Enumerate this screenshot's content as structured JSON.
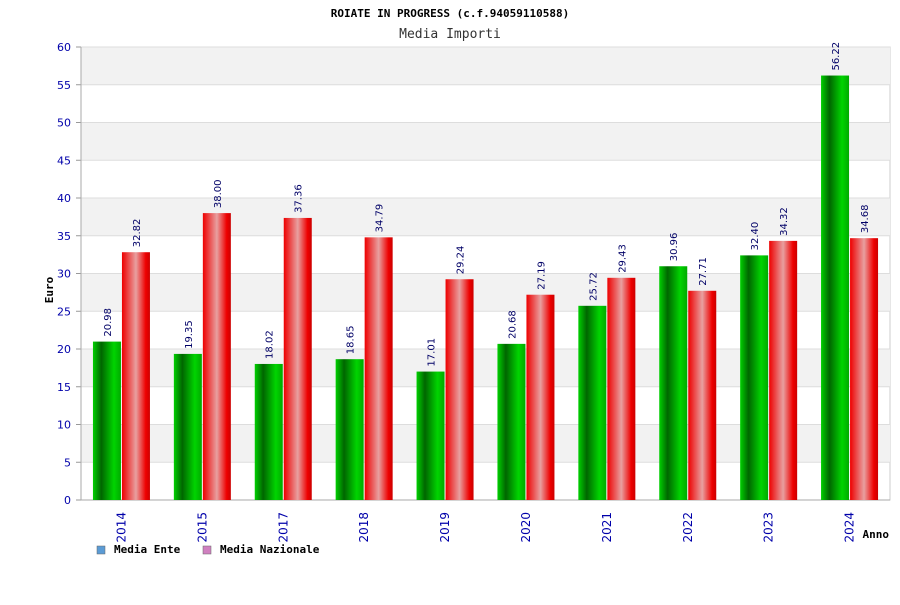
{
  "chart_data": {
    "type": "bar",
    "title": "ROIATE IN PROGRESS (c.f.94059110588)",
    "subtitle": "Media Importi",
    "xlabel": "Anno",
    "ylabel": "Euro",
    "ylim": [
      0,
      60
    ],
    "yticks": [
      "0",
      "5",
      "10",
      "15",
      "20",
      "25",
      "30",
      "35",
      "40",
      "45",
      "50",
      "55",
      "60"
    ],
    "categories": [
      "2014",
      "2015",
      "2017",
      "2018",
      "2019",
      "2020",
      "2021",
      "2022",
      "2023",
      "2024"
    ],
    "series": [
      {
        "name": "Media Ente",
        "values": [
          20.98,
          19.35,
          18.02,
          18.65,
          17.01,
          20.68,
          25.72,
          30.96,
          32.4,
          56.22
        ],
        "labels": [
          "20.98",
          "19.35",
          "18.02",
          "18.65",
          "17.01",
          "20.68",
          "25.72",
          "30.96",
          "32.40",
          "56.22"
        ],
        "color": "#00b000",
        "legend_color": "#5b9bd5"
      },
      {
        "name": "Media Nazionale",
        "values": [
          32.82,
          38.0,
          37.36,
          34.79,
          29.24,
          27.19,
          29.43,
          27.71,
          34.32,
          34.68
        ],
        "labels": [
          "32.82",
          "38.00",
          "37.36",
          "34.79",
          "29.24",
          "27.19",
          "29.43",
          "27.71",
          "34.32",
          "34.68"
        ],
        "color": "#ee0000",
        "legend_color": "#d080c0"
      }
    ],
    "grid": true,
    "legend": "bottom-left"
  }
}
